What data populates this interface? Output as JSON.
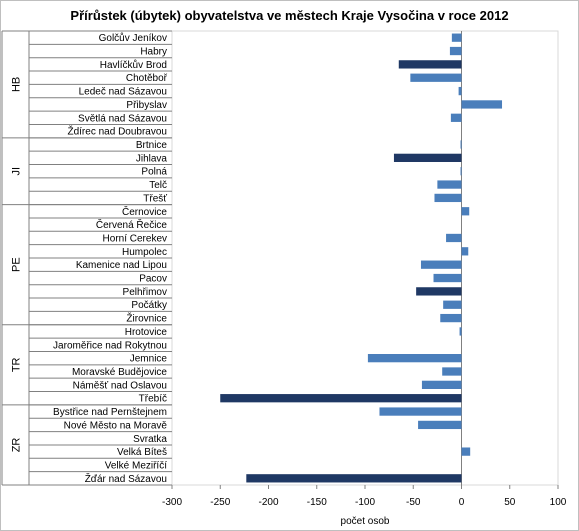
{
  "chart_data": {
    "type": "bar",
    "orientation": "horizontal",
    "title": "Přírůstek (úbytek) obyvatelstva ve městech Kraje Vysočina v roce 2012",
    "xlabel": "počet osob",
    "ylabel": "",
    "xlim": [
      -300,
      100
    ],
    "xticks": [
      -300,
      -250,
      -200,
      -150,
      -100,
      -50,
      0,
      50,
      100
    ],
    "grid": false,
    "legend": "none",
    "colors": {
      "district_capital": "#1f3864",
      "town": "#4a7ebb"
    },
    "groups": [
      {
        "name": "HB",
        "items": [
          {
            "label": "Golčův Jeníkov",
            "value": -10,
            "kind": "town"
          },
          {
            "label": "Habry",
            "value": -12,
            "kind": "town"
          },
          {
            "label": "Havlíčkův Brod",
            "value": -65,
            "kind": "district_capital"
          },
          {
            "label": "Chotěboř",
            "value": -53,
            "kind": "town"
          },
          {
            "label": "Ledeč nad Sázavou",
            "value": -3,
            "kind": "town"
          },
          {
            "label": "Přibyslav",
            "value": 42,
            "kind": "town"
          },
          {
            "label": "Světlá nad Sázavou",
            "value": -11,
            "kind": "town"
          },
          {
            "label": "Ždírec nad Doubravou",
            "value": 0,
            "kind": "town"
          }
        ]
      },
      {
        "name": "JI",
        "items": [
          {
            "label": "Brtnice",
            "value": -1,
            "kind": "town"
          },
          {
            "label": "Jihlava",
            "value": -70,
            "kind": "district_capital"
          },
          {
            "label": "Polná",
            "value": -1,
            "kind": "town"
          },
          {
            "label": "Telč",
            "value": -25,
            "kind": "town"
          },
          {
            "label": "Třešť",
            "value": -28,
            "kind": "town"
          }
        ]
      },
      {
        "name": "PE",
        "items": [
          {
            "label": "Černovice",
            "value": 8,
            "kind": "town"
          },
          {
            "label": "Červená Řečice",
            "value": 0,
            "kind": "town"
          },
          {
            "label": "Horní Cerekev",
            "value": -16,
            "kind": "town"
          },
          {
            "label": "Humpolec",
            "value": 7,
            "kind": "town"
          },
          {
            "label": "Kamenice nad Lipou",
            "value": -42,
            "kind": "town"
          },
          {
            "label": "Pacov",
            "value": -29,
            "kind": "town"
          },
          {
            "label": "Pelhřimov",
            "value": -47,
            "kind": "district_capital"
          },
          {
            "label": "Počátky",
            "value": -19,
            "kind": "town"
          },
          {
            "label": "Žirovnice",
            "value": -22,
            "kind": "town"
          }
        ]
      },
      {
        "name": "TR",
        "items": [
          {
            "label": "Hrotovice",
            "value": -2,
            "kind": "town"
          },
          {
            "label": "Jaroměřice nad Rokytnou",
            "value": 0,
            "kind": "town"
          },
          {
            "label": "Jemnice",
            "value": -97,
            "kind": "town"
          },
          {
            "label": "Moravské Budějovice",
            "value": -20,
            "kind": "town"
          },
          {
            "label": "Náměšť nad Oslavou",
            "value": -41,
            "kind": "town"
          },
          {
            "label": "Třebíč",
            "value": -250,
            "kind": "district_capital"
          }
        ]
      },
      {
        "name": "ZR",
        "items": [
          {
            "label": "Bystřice nad Pernštejnem",
            "value": -85,
            "kind": "town"
          },
          {
            "label": "Nové Město na Moravě",
            "value": -45,
            "kind": "town"
          },
          {
            "label": "Svratka",
            "value": 0,
            "kind": "town"
          },
          {
            "label": "Velká Bíteš",
            "value": 9,
            "kind": "town"
          },
          {
            "label": "Velké Meziříčí",
            "value": 0,
            "kind": "town"
          },
          {
            "label": "Žďár nad Sázavou",
            "value": -223,
            "kind": "district_capital"
          }
        ]
      }
    ]
  }
}
